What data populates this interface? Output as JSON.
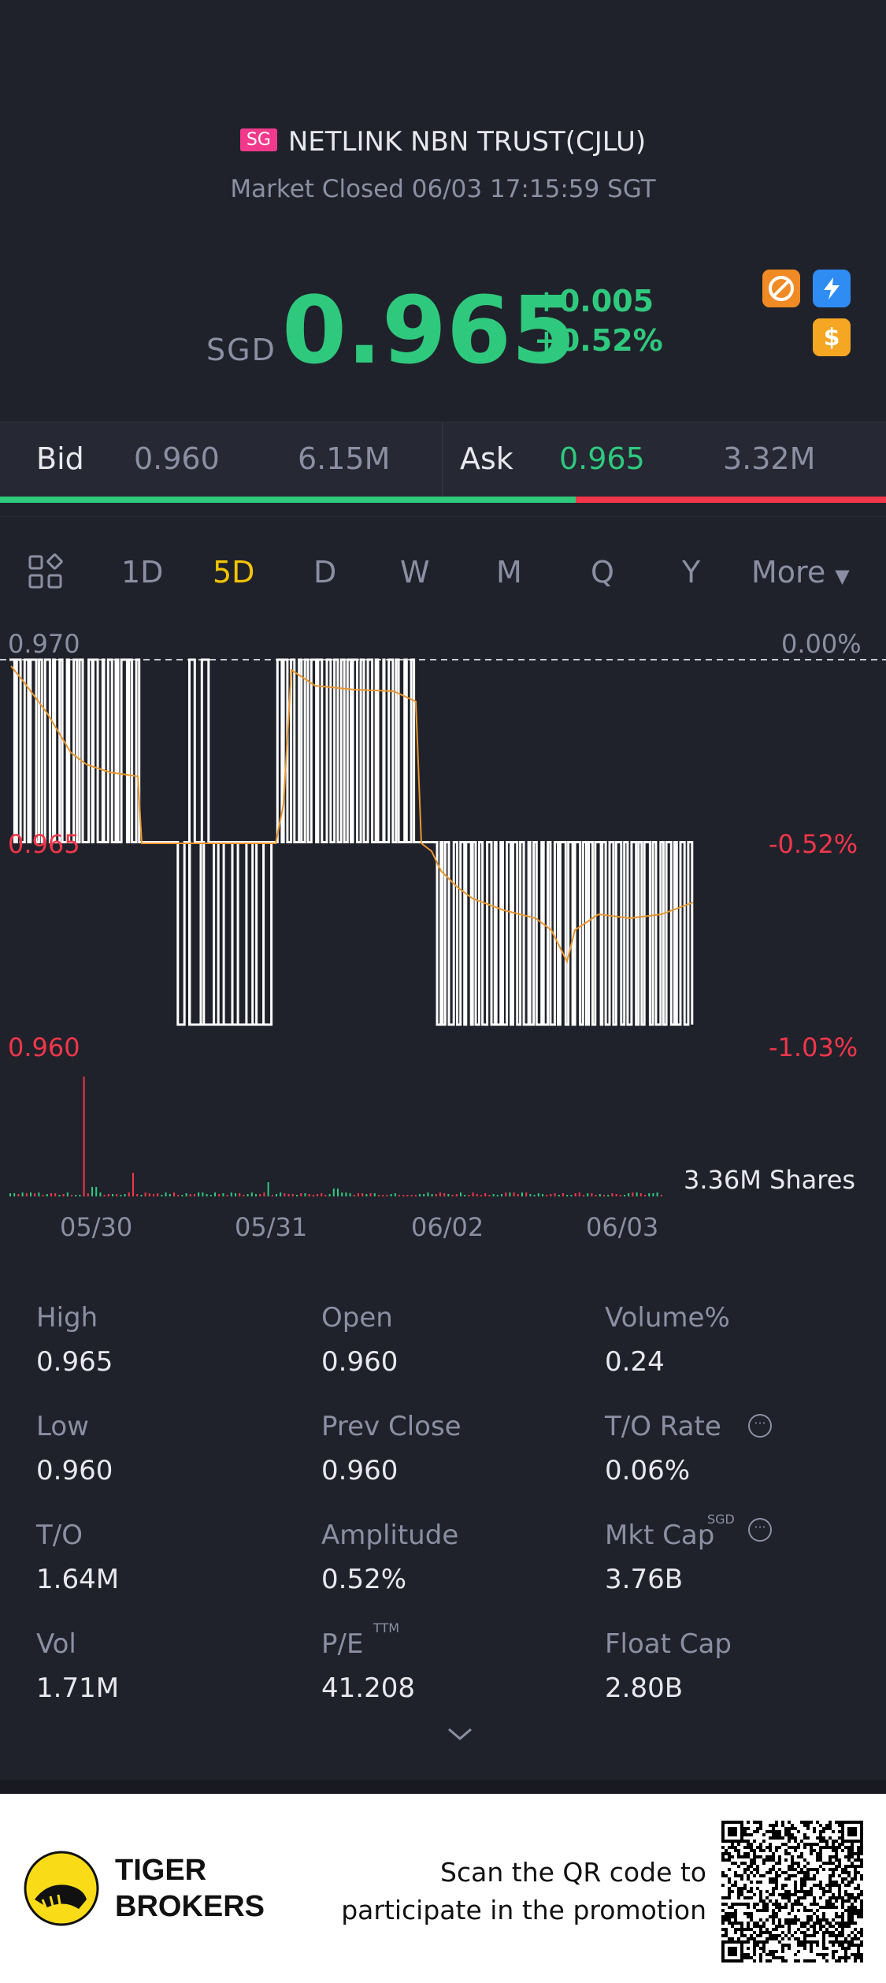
{
  "header": {
    "market_badge": "SG",
    "title": "NETLINK NBN TRUST(CJLU)",
    "status": "Market Closed 06/03 17:15:59 SGT"
  },
  "quote": {
    "currency": "SGD",
    "price": "0.965",
    "change": "+0.005",
    "change_pct": "+0.52%"
  },
  "bidask": {
    "bid_label": "Bid",
    "bid_price": "0.960",
    "bid_size": "6.15M",
    "ask_label": "Ask",
    "ask_price": "0.965",
    "ask_size": "3.32M",
    "bid_ratio": 0.65
  },
  "tabs": {
    "items": [
      "1D",
      "5D",
      "D",
      "W",
      "M",
      "Q",
      "Y",
      "More"
    ],
    "active": "5D"
  },
  "chart_data": {
    "type": "line",
    "y_left_ticks": [
      "0.970",
      "0.965",
      "0.960"
    ],
    "y_right_ticks": [
      "0.00%",
      "-0.52%",
      "-1.03%"
    ],
    "x_ticks": [
      "05/30",
      "05/31",
      "06/02",
      "06/03"
    ],
    "volume_label": "3.36M Shares",
    "ylim": [
      0.96,
      0.97
    ],
    "reference_price": 0.97
  },
  "stats": {
    "high_label": "High",
    "high": "0.965",
    "open_label": "Open",
    "open": "0.960",
    "volpct_label": "Volume%",
    "volpct": "0.24",
    "low_label": "Low",
    "low": "0.960",
    "prevclose_label": "Prev Close",
    "prevclose": "0.960",
    "torate_label": "T/O Rate",
    "torate": "0.06%",
    "to_label": "T/O",
    "to": "1.64M",
    "amplitude_label": "Amplitude",
    "amplitude": "0.52%",
    "mktcap_label": "Mkt Cap",
    "mktcap_sup": "SGD",
    "mktcap": "3.76B",
    "vol_label": "Vol",
    "vol": "1.71M",
    "pe_label": "P/E",
    "pe_sup": "TTM",
    "pe": "41.208",
    "floatcap_label": "Float Cap",
    "floatcap": "2.80B"
  },
  "footer": {
    "brand_line1": "TIGER",
    "brand_line2": "BROKERS",
    "promo_line1": "Scan the QR code to",
    "promo_line2": "participate in the promotion"
  }
}
